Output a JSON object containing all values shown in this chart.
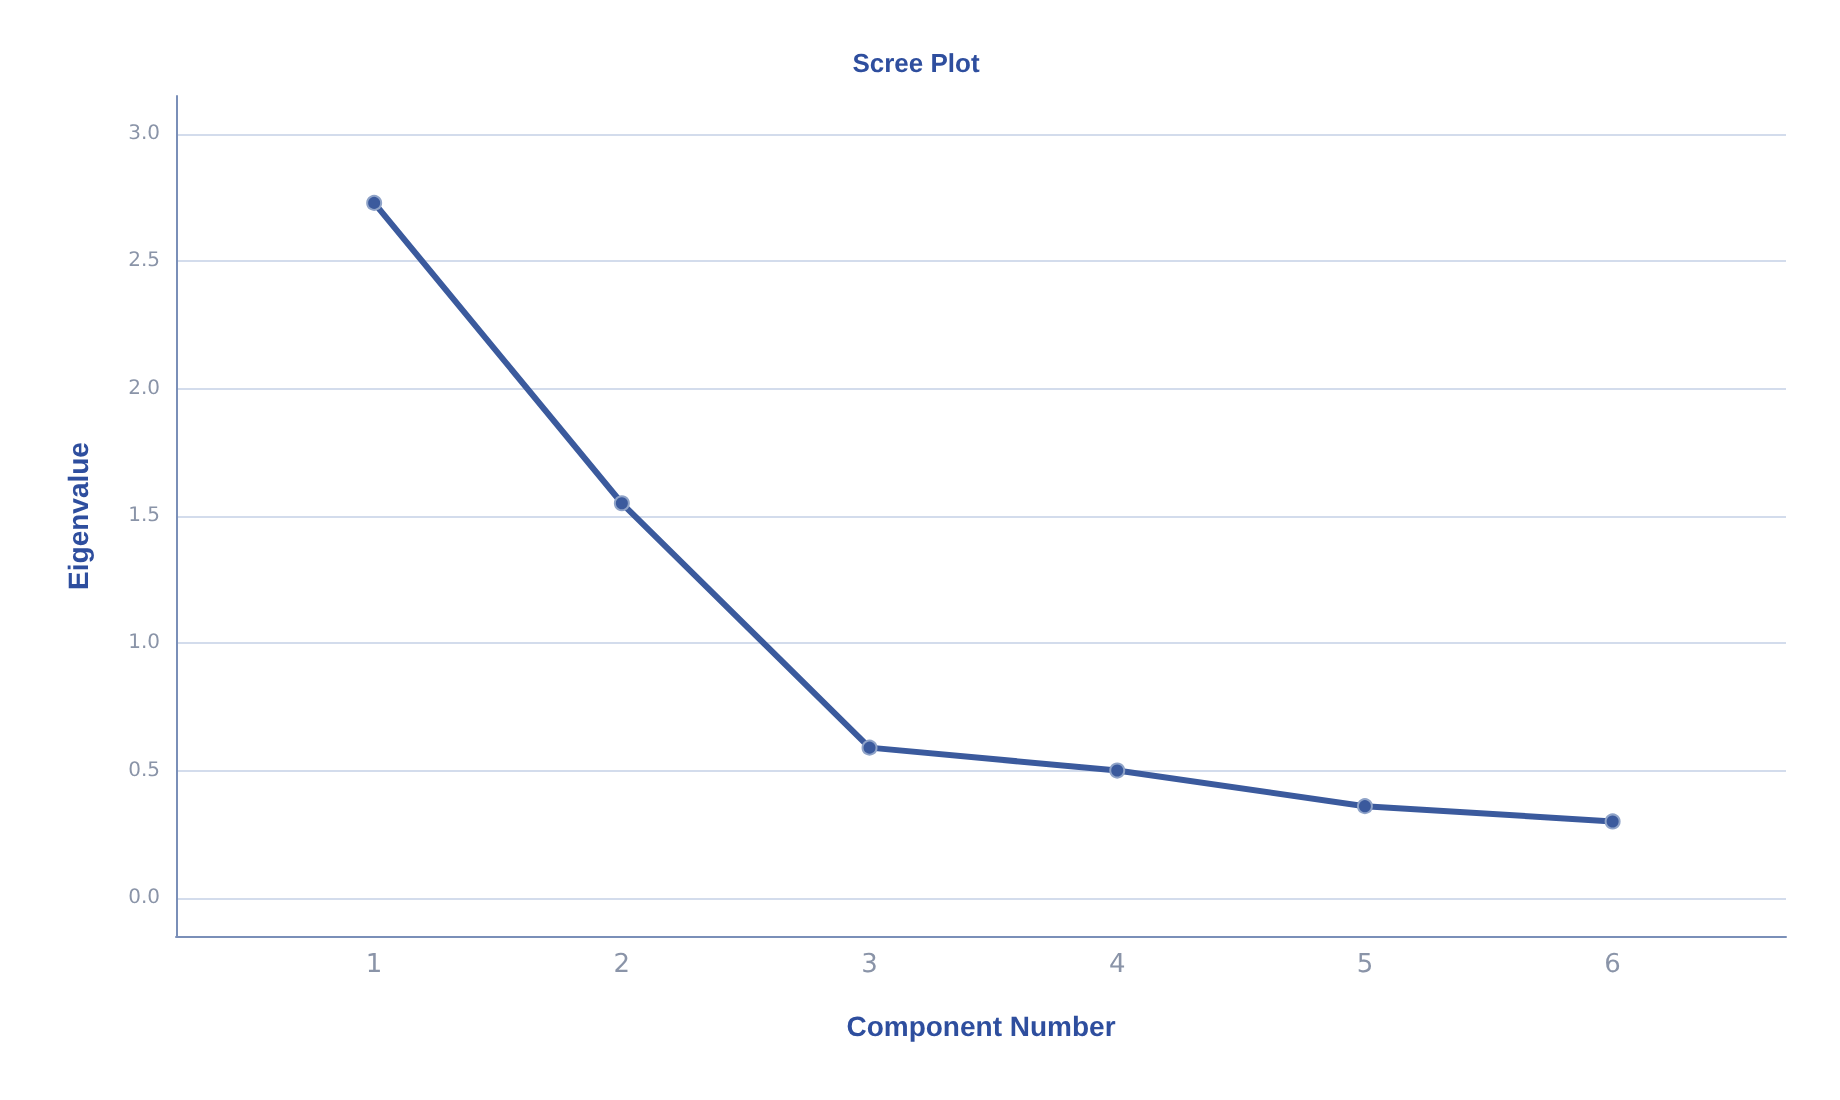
{
  "chart_data": {
    "type": "line",
    "title": "Scree Plot",
    "xlabel": "Component Number",
    "ylabel": "Eigenvalue",
    "x": [
      1,
      2,
      3,
      4,
      5,
      6
    ],
    "series": [
      {
        "color": "#3b5a9d",
        "values": [
          2.73,
          1.55,
          0.59,
          0.5,
          0.36,
          0.3
        ]
      }
    ],
    "xlim": [
      0.2,
      6.7
    ],
    "xticks": [
      1,
      2,
      3,
      4,
      5,
      6
    ],
    "ylim": [
      -0.15,
      3.15
    ],
    "yticks": [
      {
        "value": 0,
        "label": "0.0"
      },
      {
        "value": 0.5,
        "label": "0.5"
      },
      {
        "value": 1,
        "label": "1.0"
      },
      {
        "value": 1.5,
        "label": "1.5"
      },
      {
        "value": 2,
        "label": "2.0"
      },
      {
        "value": 2.5,
        "label": "2.5"
      },
      {
        "value": 3,
        "label": "3.0"
      }
    ],
    "grid": "y",
    "marker": "circle",
    "line_style": "solid"
  }
}
